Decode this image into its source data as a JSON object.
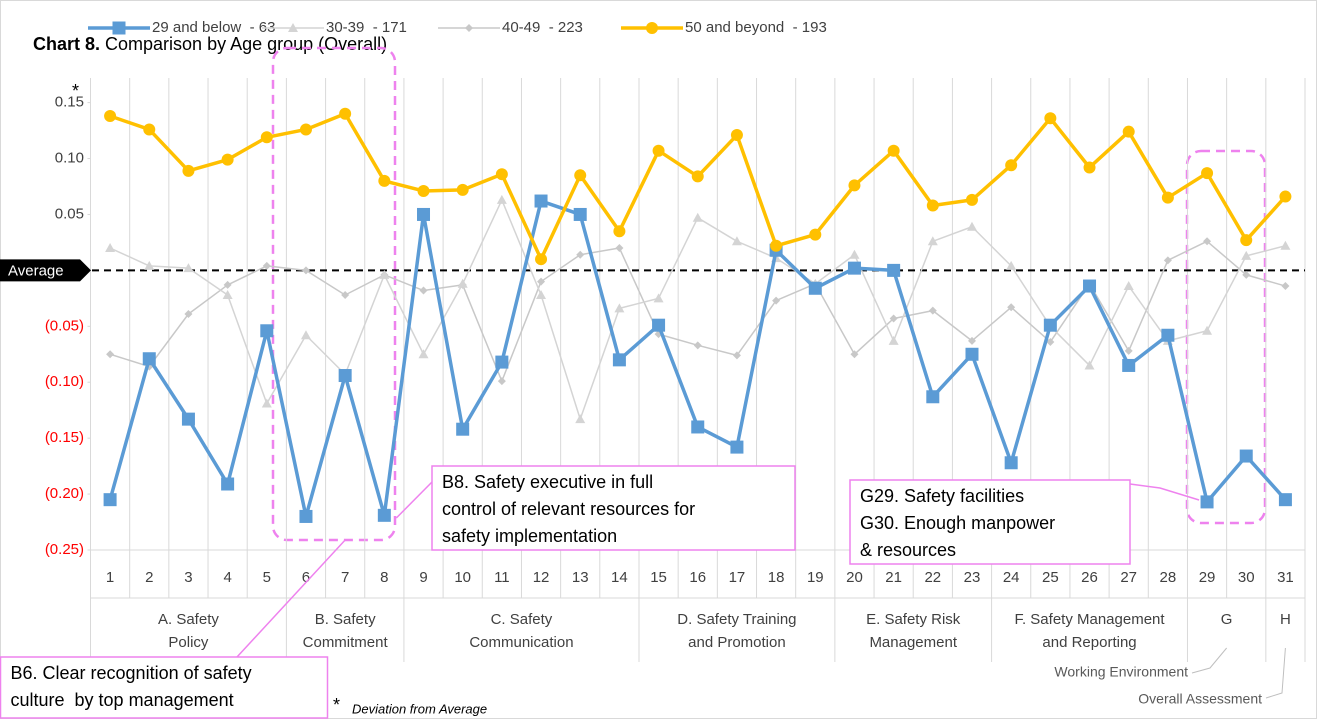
{
  "chart_data": {
    "type": "line",
    "title_prefix": "Chart 8.",
    "title": "Comparison by Age group (Overall)",
    "axis_note": "*",
    "footnote_mark": "*",
    "footnote": "Deviation from Average",
    "categories": [
      "1",
      "2",
      "3",
      "4",
      "5",
      "6",
      "7",
      "8",
      "9",
      "10",
      "11",
      "12",
      "13",
      "14",
      "15",
      "16",
      "17",
      "18",
      "19",
      "20",
      "21",
      "22",
      "23",
      "24",
      "25",
      "26",
      "27",
      "28",
      "29",
      "30",
      "31"
    ],
    "groups": [
      {
        "lines": [
          "A. Safety",
          "Policy"
        ],
        "span": 5
      },
      {
        "lines": [
          "B. Safety",
          "Commitment"
        ],
        "span": 3
      },
      {
        "lines": [
          "C. Safety",
          "Communication"
        ],
        "span": 6
      },
      {
        "lines": [
          "D. Safety Training",
          "and Promotion"
        ],
        "span": 5
      },
      {
        "lines": [
          "E. Safety Risk",
          "Management"
        ],
        "span": 4
      },
      {
        "lines": [
          "F. Safety Management",
          "and Reporting"
        ],
        "span": 5
      },
      {
        "lines": [
          "G"
        ],
        "span": 2
      },
      {
        "lines": [
          "H"
        ],
        "span": 1
      }
    ],
    "group_notes": [
      "Working Environment",
      "Overall Assessment"
    ],
    "series": [
      {
        "name": "29 and below  - 63",
        "color": "#5b9bd5",
        "marker": "square",
        "values": [
          -0.205,
          -0.079,
          -0.133,
          -0.191,
          -0.054,
          -0.22,
          -0.094,
          -0.219,
          0.05,
          -0.142,
          -0.082,
          0.062,
          0.05,
          -0.08,
          -0.049,
          -0.14,
          -0.158,
          0.018,
          -0.016,
          0.002,
          0.0,
          -0.113,
          -0.075,
          -0.172,
          -0.049,
          -0.014,
          -0.085,
          -0.058,
          -0.207,
          -0.166,
          -0.205
        ]
      },
      {
        "name": "30-39  - 171",
        "color": "#d4d4d4",
        "marker": "triangle",
        "values": [
          0.02,
          0.004,
          0.002,
          -0.022,
          -0.119,
          -0.058,
          -0.093,
          -0.004,
          -0.075,
          -0.012,
          0.063,
          -0.022,
          -0.133,
          -0.034,
          -0.025,
          0.047,
          0.026,
          0.011,
          -0.012,
          0.014,
          -0.063,
          0.026,
          0.039,
          0.004,
          -0.05,
          -0.085,
          -0.014,
          -0.063,
          -0.054,
          0.013,
          0.022
        ]
      },
      {
        "name": "40-49  - 223",
        "color": "#c8c8c8",
        "marker": "diamond",
        "values": [
          -0.075,
          -0.086,
          -0.039,
          -0.013,
          0.004,
          0.0,
          -0.022,
          -0.004,
          -0.018,
          -0.013,
          -0.099,
          -0.01,
          0.014,
          0.02,
          -0.057,
          -0.067,
          -0.076,
          -0.027,
          -0.012,
          -0.075,
          -0.043,
          -0.036,
          -0.063,
          -0.033,
          -0.064,
          -0.012,
          -0.072,
          0.009,
          0.026,
          -0.004,
          -0.014
        ]
      },
      {
        "name": "50 and beyond  - 193",
        "color": "#ffc000",
        "marker": "circle",
        "values": [
          0.138,
          0.126,
          0.089,
          0.099,
          0.119,
          0.126,
          0.14,
          0.08,
          0.071,
          0.072,
          0.086,
          0.01,
          0.085,
          0.035,
          0.107,
          0.084,
          0.121,
          0.022,
          0.032,
          0.076,
          0.107,
          0.058,
          0.063,
          0.094,
          0.136,
          0.092,
          0.124,
          0.065,
          0.087,
          0.027,
          0.066
        ]
      }
    ],
    "ylim": [
      -0.25,
      0.172
    ],
    "yticks": [
      {
        "value": 0.15,
        "label": "0.15"
      },
      {
        "value": 0.1,
        "label": "0.10"
      },
      {
        "value": 0.05,
        "label": "0.05"
      },
      {
        "value": 0,
        "label": "Average"
      },
      {
        "value": -0.05,
        "label": "(0.05)"
      },
      {
        "value": -0.1,
        "label": "(0.10)"
      },
      {
        "value": -0.15,
        "label": "(0.15)"
      },
      {
        "value": -0.2,
        "label": "(0.20)"
      },
      {
        "value": -0.25,
        "label": "(0.25)"
      }
    ],
    "negative_tick_color": "#ff0000",
    "callouts": [
      {
        "lines": [
          "B6. Clear recognition of safety",
          "culture  by top management"
        ]
      },
      {
        "lines": [
          "B8. Safety executive in full",
          "control of relevant resources for",
          "safety implementation"
        ]
      },
      {
        "lines": [
          "G29. Safety facilities",
          "G30. Enough manpower",
          "& resources"
        ]
      }
    ]
  }
}
